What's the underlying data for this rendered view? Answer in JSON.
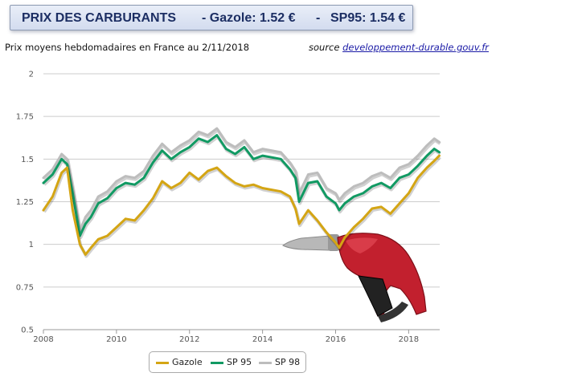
{
  "header": {
    "title": "PRIX DES CARBURANTS",
    "gazole": "- Gazole: 1.52 €",
    "separator": "-",
    "sp95": "SP95: 1.54 €"
  },
  "subtitle": "Prix moyens hebdomadaires en France au 2/11/2018",
  "source": {
    "label": "source",
    "link_text": "developpement-durable.gouv.fr"
  },
  "colors": {
    "gazole": "#d4a514",
    "sp95": "#119a63",
    "sp98": "#bdbdbd",
    "grid": "#cccccc"
  },
  "chart_data": {
    "type": "line",
    "title": "",
    "xlabel": "",
    "ylabel": "",
    "xlim": [
      2008.0,
      2018.85
    ],
    "ylim": [
      0.5,
      2.0
    ],
    "x_ticks": [
      2008,
      2010,
      2012,
      2014,
      2016,
      2018
    ],
    "y_ticks": [
      0.5,
      0.75,
      1,
      1.25,
      1.5,
      1.75,
      2
    ],
    "y_tick_labels": [
      "0.5",
      "0.75",
      "1",
      "1.25",
      "1.5",
      "1.75",
      "2"
    ],
    "grid": "horizontal",
    "legend_position": "bottom-center",
    "x": [
      2008.0,
      2008.25,
      2008.5,
      2008.65,
      2008.8,
      2009.0,
      2009.15,
      2009.3,
      2009.5,
      2009.75,
      2010.0,
      2010.25,
      2010.5,
      2010.75,
      2011.0,
      2011.25,
      2011.5,
      2011.75,
      2012.0,
      2012.25,
      2012.5,
      2012.75,
      2013.0,
      2013.25,
      2013.5,
      2013.75,
      2014.0,
      2014.25,
      2014.5,
      2014.75,
      2014.9,
      2015.0,
      2015.25,
      2015.5,
      2015.75,
      2016.0,
      2016.1,
      2016.25,
      2016.5,
      2016.75,
      2017.0,
      2017.25,
      2017.5,
      2017.75,
      2018.0,
      2018.25,
      2018.5,
      2018.7,
      2018.84
    ],
    "series": [
      {
        "name": "Gazole",
        "color": "#d4a514",
        "values": [
          1.2,
          1.28,
          1.42,
          1.45,
          1.2,
          1.0,
          0.94,
          0.98,
          1.03,
          1.05,
          1.1,
          1.15,
          1.14,
          1.2,
          1.27,
          1.37,
          1.33,
          1.36,
          1.42,
          1.38,
          1.43,
          1.45,
          1.4,
          1.36,
          1.34,
          1.35,
          1.33,
          1.32,
          1.31,
          1.28,
          1.21,
          1.12,
          1.2,
          1.14,
          1.07,
          1.01,
          0.98,
          1.04,
          1.1,
          1.15,
          1.21,
          1.22,
          1.18,
          1.24,
          1.3,
          1.39,
          1.45,
          1.49,
          1.52
        ]
      },
      {
        "name": "SP 95",
        "color": "#119a63",
        "values": [
          1.36,
          1.41,
          1.5,
          1.47,
          1.3,
          1.05,
          1.12,
          1.16,
          1.24,
          1.27,
          1.33,
          1.36,
          1.35,
          1.39,
          1.48,
          1.55,
          1.5,
          1.54,
          1.57,
          1.62,
          1.6,
          1.64,
          1.56,
          1.53,
          1.57,
          1.5,
          1.52,
          1.51,
          1.5,
          1.44,
          1.39,
          1.25,
          1.36,
          1.37,
          1.28,
          1.24,
          1.2,
          1.24,
          1.28,
          1.3,
          1.34,
          1.36,
          1.33,
          1.39,
          1.41,
          1.46,
          1.52,
          1.56,
          1.54
        ]
      },
      {
        "name": "SP 98",
        "color": "#bdbdbd",
        "values": [
          1.39,
          1.44,
          1.53,
          1.5,
          1.33,
          1.08,
          1.16,
          1.2,
          1.28,
          1.31,
          1.37,
          1.4,
          1.39,
          1.43,
          1.52,
          1.59,
          1.54,
          1.58,
          1.61,
          1.66,
          1.64,
          1.68,
          1.6,
          1.57,
          1.61,
          1.54,
          1.56,
          1.55,
          1.54,
          1.48,
          1.43,
          1.3,
          1.41,
          1.42,
          1.33,
          1.3,
          1.26,
          1.3,
          1.34,
          1.36,
          1.4,
          1.42,
          1.39,
          1.45,
          1.47,
          1.52,
          1.58,
          1.62,
          1.6
        ]
      }
    ]
  },
  "legend": {
    "items": [
      {
        "label": "Gazole",
        "color": "#d4a514"
      },
      {
        "label": "SP 95",
        "color": "#119a63"
      },
      {
        "label": "SP 98",
        "color": "#bdbdbd"
      }
    ]
  },
  "images": {
    "fuel_nozzle": "fuel-nozzle-icon"
  }
}
